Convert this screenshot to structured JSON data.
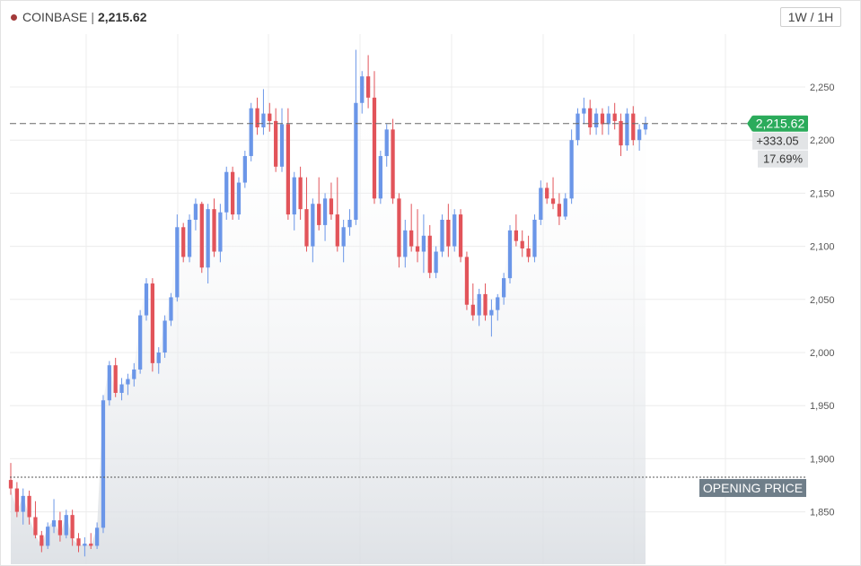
{
  "header": {
    "exchange": "COINBASE",
    "separator": "|",
    "price": "2,215.62",
    "timeframe_label": "1W / 1H"
  },
  "colors": {
    "up": "#6b96e8",
    "down": "#e2545a",
    "current_price_tag": "#2bab5b",
    "opening_price_tag": "#6f7e89",
    "dot": "#a33a3a"
  },
  "icons": {
    "exchange_dot": "red-dot-icon"
  },
  "chart_data": {
    "type": "candlestick",
    "title": "",
    "ylim": [
      1800,
      2300
    ],
    "y_ticks": [
      "2,250",
      "2,200",
      "2,150",
      "2,100",
      "2,050",
      "2,000",
      "1,950",
      "1,900",
      "1,850"
    ],
    "y_tick_values": [
      2250,
      2200,
      2150,
      2100,
      2050,
      2000,
      1950,
      1900,
      1850
    ],
    "grid": true,
    "current_price": 2215.62,
    "current_price_label": "2,215.62",
    "change_label": "+333.05",
    "change_pct_label": "17.69%",
    "opening_price": 1882.57,
    "opening_price_label": "OPENING PRICE",
    "candles": [
      [
        1880,
        1896,
        1866,
        1872
      ],
      [
        1872,
        1878,
        1845,
        1850
      ],
      [
        1850,
        1872,
        1838,
        1865
      ],
      [
        1865,
        1870,
        1838,
        1845
      ],
      [
        1845,
        1860,
        1825,
        1828
      ],
      [
        1828,
        1832,
        1812,
        1818
      ],
      [
        1818,
        1840,
        1815,
        1836
      ],
      [
        1836,
        1862,
        1830,
        1842
      ],
      [
        1842,
        1850,
        1822,
        1828
      ],
      [
        1828,
        1852,
        1825,
        1847
      ],
      [
        1847,
        1852,
        1818,
        1825
      ],
      [
        1825,
        1830,
        1812,
        1818
      ],
      [
        1818,
        1826,
        1808,
        1820
      ],
      [
        1820,
        1830,
        1815,
        1818
      ],
      [
        1818,
        1840,
        1815,
        1835
      ],
      [
        1835,
        1960,
        1830,
        1955
      ],
      [
        1955,
        1992,
        1950,
        1988
      ],
      [
        1988,
        1995,
        1958,
        1962
      ],
      [
        1962,
        1976,
        1955,
        1970
      ],
      [
        1970,
        1980,
        1960,
        1975
      ],
      [
        1975,
        1990,
        1968,
        1984
      ],
      [
        1984,
        2040,
        1980,
        2035
      ],
      [
        2035,
        2070,
        2030,
        2065
      ],
      [
        2065,
        2070,
        1982,
        1990
      ],
      [
        1990,
        2005,
        1980,
        2000
      ],
      [
        2000,
        2035,
        1995,
        2030
      ],
      [
        2030,
        2056,
        2025,
        2052
      ],
      [
        2052,
        2130,
        2048,
        2118
      ],
      [
        2118,
        2122,
        2085,
        2090
      ],
      [
        2090,
        2130,
        2085,
        2125
      ],
      [
        2125,
        2145,
        2115,
        2140
      ],
      [
        2140,
        2142,
        2075,
        2080
      ],
      [
        2080,
        2140,
        2065,
        2135
      ],
      [
        2135,
        2145,
        2090,
        2095
      ],
      [
        2095,
        2140,
        2085,
        2132
      ],
      [
        2132,
        2175,
        2125,
        2170
      ],
      [
        2170,
        2175,
        2125,
        2130
      ],
      [
        2130,
        2165,
        2125,
        2160
      ],
      [
        2160,
        2190,
        2155,
        2185
      ],
      [
        2185,
        2235,
        2180,
        2230
      ],
      [
        2230,
        2240,
        2205,
        2212
      ],
      [
        2212,
        2248,
        2205,
        2225
      ],
      [
        2225,
        2235,
        2208,
        2218
      ],
      [
        2218,
        2230,
        2170,
        2175
      ],
      [
        2175,
        2230,
        2170,
        2215
      ],
      [
        2215,
        2230,
        2125,
        2130
      ],
      [
        2130,
        2170,
        2115,
        2165
      ],
      [
        2165,
        2175,
        2125,
        2135
      ],
      [
        2135,
        2165,
        2095,
        2100
      ],
      [
        2100,
        2145,
        2085,
        2140
      ],
      [
        2140,
        2165,
        2115,
        2120
      ],
      [
        2120,
        2150,
        2105,
        2145
      ],
      [
        2145,
        2160,
        2125,
        2130
      ],
      [
        2130,
        2165,
        2095,
        2100
      ],
      [
        2100,
        2125,
        2085,
        2118
      ],
      [
        2118,
        2135,
        2110,
        2125
      ],
      [
        2125,
        2285,
        2120,
        2235
      ],
      [
        2235,
        2265,
        2225,
        2260
      ],
      [
        2260,
        2280,
        2230,
        2240
      ],
      [
        2240,
        2265,
        2140,
        2145
      ],
      [
        2145,
        2190,
        2140,
        2185
      ],
      [
        2185,
        2215,
        2175,
        2210
      ],
      [
        2210,
        2220,
        2140,
        2145
      ],
      [
        2145,
        2150,
        2080,
        2090
      ],
      [
        2090,
        2125,
        2080,
        2115
      ],
      [
        2115,
        2140,
        2095,
        2100
      ],
      [
        2100,
        2135,
        2085,
        2095
      ],
      [
        2095,
        2130,
        2075,
        2110
      ],
      [
        2110,
        2120,
        2070,
        2075
      ],
      [
        2075,
        2100,
        2070,
        2095
      ],
      [
        2095,
        2130,
        2090,
        2125
      ],
      [
        2125,
        2140,
        2090,
        2100
      ],
      [
        2100,
        2135,
        2095,
        2130
      ],
      [
        2130,
        2135,
        2085,
        2090
      ],
      [
        2090,
        2095,
        2040,
        2045
      ],
      [
        2045,
        2065,
        2030,
        2035
      ],
      [
        2035,
        2060,
        2025,
        2055
      ],
      [
        2055,
        2065,
        2030,
        2035
      ],
      [
        2035,
        2050,
        2015,
        2040
      ],
      [
        2040,
        2055,
        2030,
        2052
      ],
      [
        2052,
        2075,
        2045,
        2070
      ],
      [
        2070,
        2120,
        2065,
        2115
      ],
      [
        2115,
        2130,
        2100,
        2105
      ],
      [
        2105,
        2115,
        2090,
        2098
      ],
      [
        2098,
        2110,
        2085,
        2090
      ],
      [
        2090,
        2130,
        2085,
        2125
      ],
      [
        2125,
        2162,
        2120,
        2155
      ],
      [
        2155,
        2160,
        2140,
        2145
      ],
      [
        2145,
        2165,
        2135,
        2140
      ],
      [
        2140,
        2150,
        2120,
        2128
      ],
      [
        2128,
        2150,
        2125,
        2145
      ],
      [
        2145,
        2210,
        2140,
        2200
      ],
      [
        2200,
        2230,
        2195,
        2225
      ],
      [
        2225,
        2240,
        2215,
        2230
      ],
      [
        2230,
        2238,
        2205,
        2212
      ],
      [
        2212,
        2230,
        2205,
        2225
      ],
      [
        2225,
        2230,
        2205,
        2215
      ],
      [
        2215,
        2232,
        2205,
        2225
      ],
      [
        2225,
        2235,
        2210,
        2218
      ],
      [
        2218,
        2225,
        2185,
        2195
      ],
      [
        2195,
        2230,
        2190,
        2225
      ],
      [
        2225,
        2232,
        2195,
        2200
      ],
      [
        2200,
        2215,
        2190,
        2210
      ],
      [
        2210,
        2222,
        2205,
        2215.62
      ]
    ]
  }
}
